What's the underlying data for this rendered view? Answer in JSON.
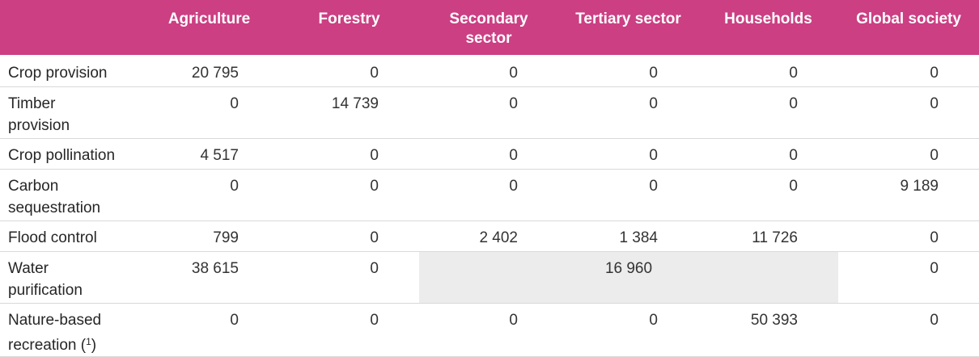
{
  "table": {
    "headers": [
      "",
      "Agriculture",
      "Forestry",
      "Secondary\nsector",
      "Tertiary sector",
      "Households",
      "Global society"
    ],
    "rows": [
      {
        "label": "Crop provision",
        "cells": [
          "20 795",
          "0",
          "0",
          "0",
          "0",
          "0"
        ]
      },
      {
        "label": "Timber\nprovision",
        "cells": [
          "0",
          "14 739",
          "0",
          "0",
          "0",
          "0"
        ]
      },
      {
        "label": "Crop pollination",
        "cells": [
          "4 517",
          "0",
          "0",
          "0",
          "0",
          "0"
        ]
      },
      {
        "label": "Carbon\nsequestration",
        "cells": [
          "0",
          "0",
          "0",
          "0",
          "0",
          "9 189"
        ]
      },
      {
        "label": "Flood control",
        "cells": [
          "799",
          "0",
          "2 402",
          "1 384",
          "11 726",
          "0"
        ]
      },
      {
        "label": "Water\npurification",
        "agriculture": "38 615",
        "forestry": "0",
        "merged_secondary_tertiary_households": "16 960",
        "global_society": "0"
      },
      {
        "label_line1": "Nature-based",
        "label_line2": "recreation (",
        "footnote": "1",
        "label_close": ")",
        "cells": [
          "0",
          "0",
          "0",
          "0",
          "50 393",
          "0"
        ]
      }
    ]
  },
  "colors": {
    "header_bg": "#cc3f83",
    "header_text": "#ffffff",
    "merged_bg": "#ececec",
    "row_border": "#d9d9d9"
  }
}
